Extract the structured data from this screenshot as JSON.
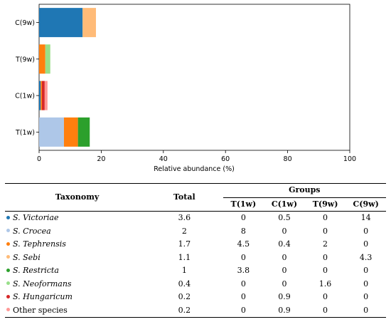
{
  "chart_data": {
    "type": "bar",
    "orientation": "horizontal",
    "stacked": true,
    "categories": [
      "C(9w)",
      "T(9w)",
      "C(1w)",
      "T(1w)"
    ],
    "xlabel": "Relative abundance (%)",
    "xlim": [
      0,
      100
    ],
    "xticks": [
      0,
      20,
      40,
      60,
      80,
      100
    ],
    "grid": false,
    "legend": "none",
    "series": [
      {
        "color": "#1f77b4",
        "values": [
          14,
          0,
          0.5,
          0
        ]
      },
      {
        "color": "#aec7e8",
        "values": [
          0,
          0,
          0,
          8
        ]
      },
      {
        "color": "#ff7f0e",
        "values": [
          0,
          2,
          0.4,
          4.5
        ]
      },
      {
        "color": "#ffbb78",
        "values": [
          4.3,
          0,
          0,
          0
        ]
      },
      {
        "color": "#2ca02c",
        "values": [
          0,
          0,
          0,
          3.8
        ]
      },
      {
        "color": "#98df8a",
        "values": [
          0,
          1.6,
          0,
          0
        ]
      },
      {
        "color": "#d62728",
        "values": [
          0,
          0,
          0.9,
          0
        ]
      },
      {
        "color": "#ff9896",
        "values": [
          0,
          0,
          0.9,
          0
        ]
      }
    ]
  },
  "table": {
    "headers": {
      "taxonomy": "Taxonomy",
      "total": "Total",
      "groups": "Groups",
      "group_cols": [
        "T(1w)",
        "C(1w)",
        "T(9w)",
        "C(9w)"
      ]
    },
    "rows": [
      {
        "prefix": "S.",
        "name": "Victoriae",
        "color": "#1f77b4",
        "total": "3.6",
        "values": [
          "0",
          "0.5",
          "0",
          "14"
        ]
      },
      {
        "prefix": "S.",
        "name": "Crocea",
        "color": "#aec7e8",
        "total": "2",
        "values": [
          "8",
          "0",
          "0",
          "0"
        ]
      },
      {
        "prefix": "S.",
        "name": "Tephrensis",
        "color": "#ff7f0e",
        "total": "1.7",
        "values": [
          "4.5",
          "0.4",
          "2",
          "0"
        ]
      },
      {
        "prefix": "S.",
        "name": "Sebi",
        "color": "#ffbb78",
        "total": "1.1",
        "values": [
          "0",
          "0",
          "0",
          "4.3"
        ]
      },
      {
        "prefix": "S.",
        "name": "Restricta",
        "color": "#2ca02c",
        "total": "1",
        "values": [
          "3.8",
          "0",
          "0",
          "0"
        ]
      },
      {
        "prefix": "S.",
        "name": "Neoformans",
        "color": "#98df8a",
        "total": "0.4",
        "values": [
          "0",
          "0",
          "1.6",
          "0"
        ]
      },
      {
        "prefix": "S.",
        "name": "Hungaricum",
        "color": "#d62728",
        "total": "0.2",
        "values": [
          "0",
          "0.9",
          "0",
          "0"
        ]
      },
      {
        "prefix": "",
        "name": "Other species",
        "color": "#ff9896",
        "total": "0.2",
        "values": [
          "0",
          "0.9",
          "0",
          "0"
        ]
      }
    ]
  }
}
